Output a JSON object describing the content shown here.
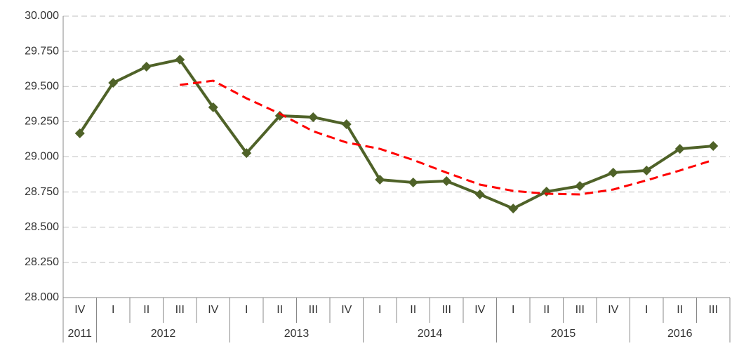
{
  "chart_data": {
    "type": "line",
    "categories": [
      "IV",
      "I",
      "II",
      "III",
      "IV",
      "I",
      "II",
      "III",
      "IV",
      "I",
      "II",
      "III",
      "IV",
      "I",
      "II",
      "III",
      "IV",
      "I",
      "II",
      "III"
    ],
    "years": [
      {
        "label": "2011",
        "quarters": 1
      },
      {
        "label": "2012",
        "quarters": 4
      },
      {
        "label": "2013",
        "quarters": 4
      },
      {
        "label": "2014",
        "quarters": 4
      },
      {
        "label": "2015",
        "quarters": 4
      },
      {
        "label": "2016",
        "quarters": 3
      }
    ],
    "series": [
      {
        "color": "#4f6228",
        "style": "solid",
        "marker": "diamond",
        "values": [
          29167,
          29526,
          29641,
          29691,
          29352,
          29027,
          29292,
          29282,
          29232,
          28838,
          28818,
          28828,
          28733,
          28633,
          28753,
          28793,
          28888,
          28903,
          29057,
          29077
        ]
      },
      {
        "color": "#ff0000",
        "style": "dashed",
        "values": [
          null,
          null,
          null,
          29511,
          29541,
          29416,
          29307,
          29182,
          29102,
          29057,
          28978,
          28888,
          28803,
          28758,
          28738,
          28733,
          28768,
          28833,
          28903,
          28978
        ]
      }
    ],
    "ylim": [
      28000,
      30000
    ],
    "yticks": [
      {
        "value": 28000,
        "label": "28.000"
      },
      {
        "value": 28250,
        "label": "28.250"
      },
      {
        "value": 28500,
        "label": "28.500"
      },
      {
        "value": 28750,
        "label": "28.750"
      },
      {
        "value": 29000,
        "label": "29.000"
      },
      {
        "value": 29250,
        "label": "29.250"
      },
      {
        "value": 29500,
        "label": "29.500"
      },
      {
        "value": 29750,
        "label": "29.750"
      },
      {
        "value": 30000,
        "label": "30.000"
      }
    ],
    "grid": true
  }
}
